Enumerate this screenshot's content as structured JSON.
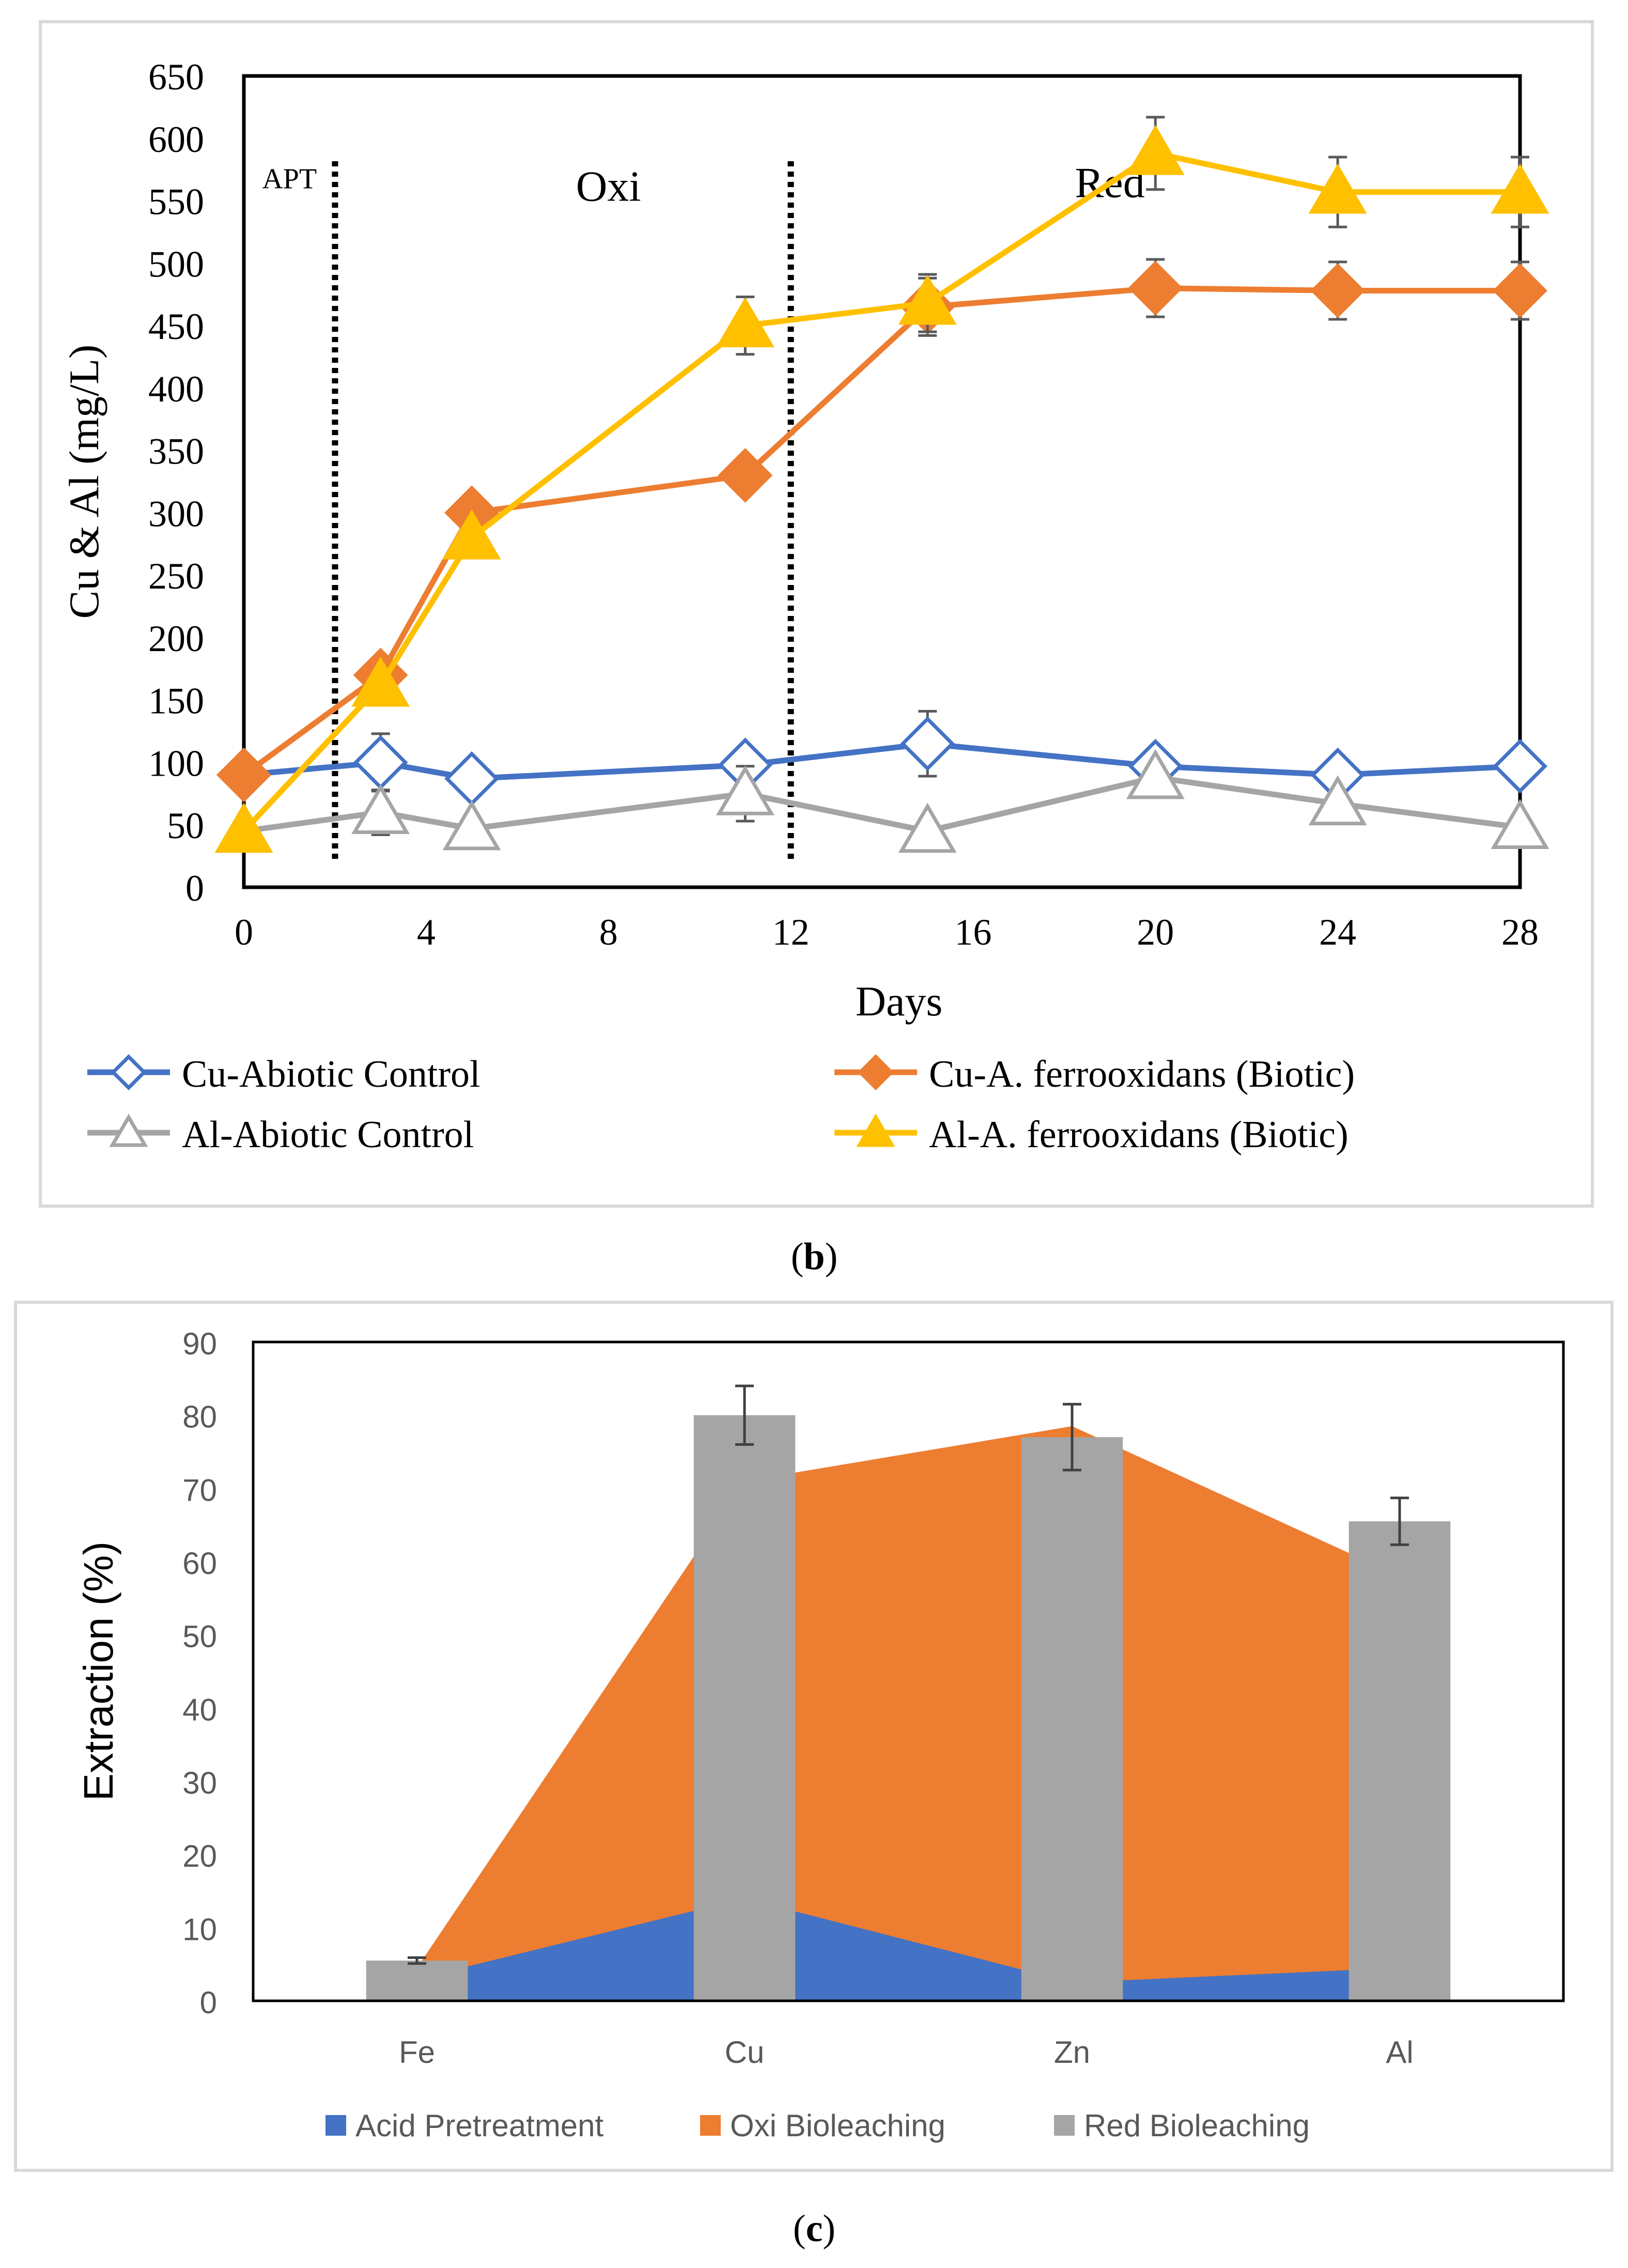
{
  "figure_labels": {
    "b": "b",
    "c": "c"
  },
  "colors": {
    "cu_abiotic": "#4472C4",
    "cu_biotic": "#ED7D31",
    "al_abiotic": "#A5A5A5",
    "al_biotic": "#FFC000",
    "acid": "#4472C4",
    "oxi": "#ED7D31",
    "red": "#A5A5A5",
    "axis": "#000000",
    "frame": "#D9D9D9"
  },
  "chart_data": [
    {
      "id": "b",
      "type": "line",
      "title": "",
      "xlabel": "Days",
      "ylabel": "Cu & Al (mg/L)",
      "xlim": [
        0,
        28
      ],
      "ylim": [
        0,
        650
      ],
      "xticks": [
        0,
        4,
        8,
        12,
        16,
        20,
        24,
        28
      ],
      "yticks": [
        0,
        50,
        100,
        150,
        200,
        250,
        300,
        350,
        400,
        450,
        500,
        550,
        600,
        650
      ],
      "grid": false,
      "legend_position": "bottom",
      "x": [
        0,
        3,
        5,
        11,
        15,
        20,
        24,
        28
      ],
      "series": [
        {
          "name": "Cu-Abiotic Control",
          "marker": "diamond-open",
          "values": [
            90,
            100,
            87,
            98,
            115,
            97,
            90,
            97
          ],
          "errors": [
            6,
            23,
            6,
            6,
            26,
            6,
            6,
            6
          ]
        },
        {
          "name": "Cu-A. ferrooxidans (Biotic)",
          "marker": "diamond-filled",
          "values": [
            90,
            170,
            300,
            330,
            465,
            480,
            478,
            478
          ],
          "errors": [
            5,
            8,
            8,
            8,
            23,
            23,
            23,
            23
          ]
        },
        {
          "name": "Al-Abiotic Control",
          "marker": "triangle-open",
          "values": [
            45,
            60,
            47,
            75,
            45,
            88,
            67,
            48
          ],
          "errors": [
            4,
            18,
            4,
            22,
            5,
            5,
            5,
            5
          ]
        },
        {
          "name": "Al-A. ferrooxidans (Biotic)",
          "marker": "triangle-filled",
          "values": [
            45,
            162,
            280,
            450,
            468,
            588,
            557,
            557
          ],
          "errors": [
            4,
            8,
            8,
            23,
            23,
            29,
            28,
            28
          ]
        }
      ],
      "phase_dividers": [
        2,
        12
      ],
      "annotations": [
        {
          "text": "APT",
          "x": 1,
          "y": 560
        },
        {
          "text": "Oxi",
          "x": 8,
          "y": 550
        },
        {
          "text": "Red",
          "x": 19,
          "y": 553
        }
      ]
    },
    {
      "id": "c",
      "type": "area",
      "title": "",
      "xlabel": "",
      "ylabel": "Extraction (%)",
      "ylim": [
        0,
        90
      ],
      "yticks": [
        0,
        10,
        20,
        30,
        40,
        50,
        60,
        70,
        80,
        90
      ],
      "grid": false,
      "legend_position": "bottom",
      "categories": [
        "Fe",
        "Cu",
        "Zn",
        "Al"
      ],
      "series": [
        {
          "name": "Acid Pretreatment",
          "kind": "area",
          "values": [
            3,
            14,
            2.5,
            4.5
          ]
        },
        {
          "name": "Oxi Bioleaching",
          "kind": "area",
          "values": [
            4.5,
            71,
            78.5,
            58
          ]
        },
        {
          "name": "Red Bioleaching",
          "kind": "bar",
          "values": [
            5.5,
            80,
            77,
            65.5
          ],
          "errors": [
            0.4,
            4,
            4.5,
            3.2
          ]
        }
      ]
    }
  ]
}
